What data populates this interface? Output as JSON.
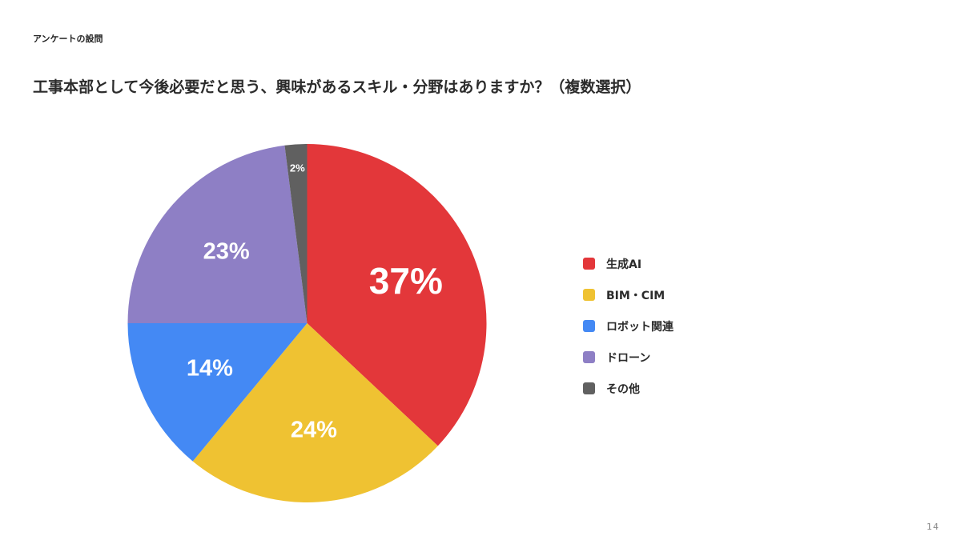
{
  "slide": {
    "section_label": "アンケートの設問",
    "title": "工事本部として今後必要だと思う、興味があるスキル・分野はありますか？（複数選択）",
    "page_number": "14"
  },
  "chart_data": {
    "type": "pie",
    "title": "工事本部として今後必要だと思う、興味があるスキル・分野はありますか？（複数選択）",
    "categories": [
      "生成AI",
      "BIM・CIM",
      "ロボット関連",
      "ドローン",
      "その他"
    ],
    "values": [
      37,
      24,
      14,
      23,
      2
    ],
    "labels": [
      "37%",
      "24%",
      "14%",
      "23%",
      "2%"
    ],
    "colors": [
      "#E3373A",
      "#EFC232",
      "#4489F4",
      "#8E7FC5",
      "#606060"
    ],
    "start_angle": "12 o'clock",
    "direction": "clockwise",
    "legend_position": "right"
  },
  "legend": {
    "items": [
      {
        "label": "生成AI",
        "color": "#E3373A"
      },
      {
        "label": "BIM・CIM",
        "color": "#EFC232"
      },
      {
        "label": "ロボット関連",
        "color": "#4489F4"
      },
      {
        "label": "ドローン",
        "color": "#8E7FC5"
      },
      {
        "label": "その他",
        "color": "#606060"
      }
    ]
  }
}
